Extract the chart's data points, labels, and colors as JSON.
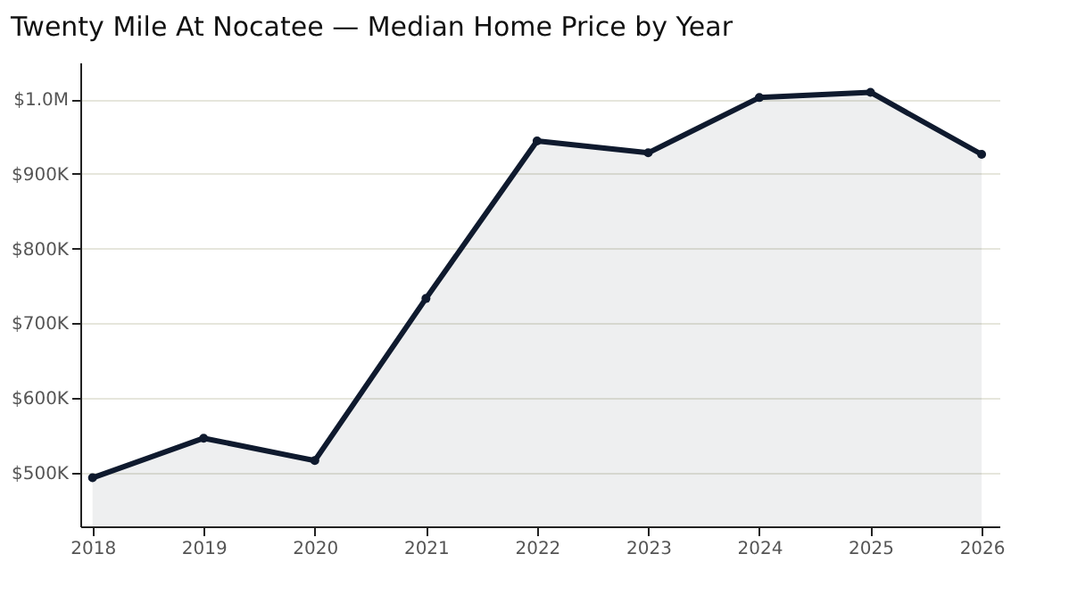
{
  "chart_data": {
    "type": "area",
    "title": "Twenty Mile At Nocatee — Median Home Price by Year",
    "x": [
      2018,
      2019,
      2020,
      2021,
      2022,
      2023,
      2024,
      2025,
      2026
    ],
    "series": [
      {
        "color": "#0f1a2e",
        "values": [
          493000,
          546000,
          516000,
          733000,
          944000,
          928000,
          1002000,
          1009000,
          926000
        ]
      }
    ],
    "xlim": [
      2017.89,
      2026.16
    ],
    "xticks": [
      2018,
      2019,
      2020,
      2021,
      2022,
      2023,
      2024,
      2025,
      2026
    ],
    "ylim": [
      428000,
      1049000
    ],
    "yticks": [
      {
        "value": 500000,
        "label": "$500K"
      },
      {
        "value": 600000,
        "label": "$600K"
      },
      {
        "value": 700000,
        "label": "$700K"
      },
      {
        "value": 800000,
        "label": "$800K"
      },
      {
        "value": 900000,
        "label": "$900K"
      },
      {
        "value": 1000000,
        "label": "$1.0M"
      }
    ],
    "grid": "y",
    "marker": "circle",
    "line_style": "solid"
  }
}
